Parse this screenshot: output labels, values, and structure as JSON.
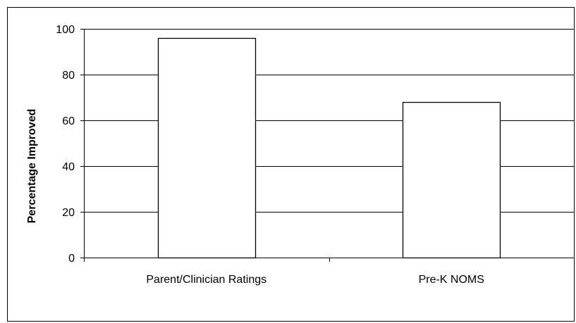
{
  "chart_data": {
    "type": "bar",
    "title": "",
    "xlabel": "",
    "ylabel": "Percentage Improved",
    "categories": [
      "Parent/Clinician Ratings",
      "Pre-K NOMS"
    ],
    "values": [
      96,
      68
    ],
    "ylim": [
      0,
      100
    ],
    "yticks": [
      0,
      20,
      40,
      60,
      80,
      100
    ],
    "grid": true,
    "legend": "none",
    "bar_fill": "#ffffff",
    "bar_stroke": "#000000",
    "grid_color": "#000000"
  }
}
